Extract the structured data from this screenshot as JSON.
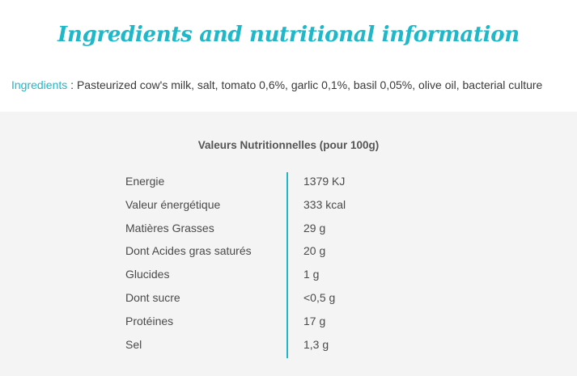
{
  "title": "Ingredients and nutritional information",
  "ingredients": {
    "label": "Ingredients",
    "separator": " : ",
    "text": "Pasteurized cow's milk, salt, tomato 0,6%, garlic 0,1%, basil 0,05%, olive oil, bacterial culture"
  },
  "nutrition": {
    "title": "Valeurs Nutritionnelles (pour 100g)",
    "rows": [
      {
        "name": "Energie",
        "value": "1379 KJ"
      },
      {
        "name": "Valeur énergétique",
        "value": "333 kcal"
      },
      {
        "name": "Matières Grasses",
        "value": "29 g"
      },
      {
        "name": "Dont Acides gras saturés",
        "value": "20 g"
      },
      {
        "name": "Glucides",
        "value": "1 g"
      },
      {
        "name": "Dont sucre",
        "value": "<0,5 g"
      },
      {
        "name": "Protéines",
        "value": "17 g"
      },
      {
        "name": "Sel",
        "value": "1,3 g"
      }
    ]
  },
  "colors": {
    "accent": "#1fb8c9",
    "text": "#3a3a3a",
    "section_bg": "#f4f4f4"
  }
}
